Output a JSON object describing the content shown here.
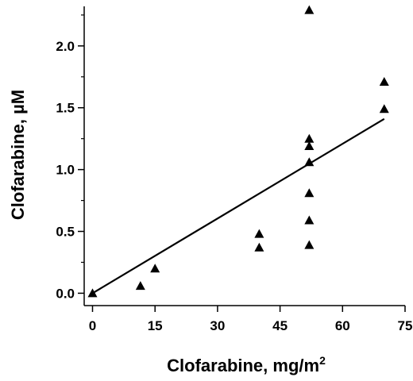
{
  "chart_data": {
    "type": "scatter",
    "xlabel": "Clofarabine, mg/m",
    "xlabel_sup": "2",
    "ylabel": "Clofarabine, µM",
    "xlim": [
      -2,
      75
    ],
    "ylim": [
      -0.1,
      2.32
    ],
    "x_ticks": [
      "0",
      "15",
      "30",
      "45",
      "60",
      "75"
    ],
    "x_tick_values": [
      0,
      15,
      30,
      45,
      60,
      75
    ],
    "y_ticks": [
      "0.0",
      "0.5",
      "1.0",
      "1.5",
      "2.0"
    ],
    "y_tick_values": [
      0.0,
      0.5,
      1.0,
      1.5,
      2.0
    ],
    "y_minor_tick_values": [
      0.25,
      0.75,
      1.25,
      1.75,
      2.25
    ],
    "marker": "triangle",
    "points": [
      {
        "x": 0,
        "y": 0.0
      },
      {
        "x": 11.5,
        "y": 0.06
      },
      {
        "x": 15,
        "y": 0.2
      },
      {
        "x": 40,
        "y": 0.48
      },
      {
        "x": 40,
        "y": 0.37
      },
      {
        "x": 52,
        "y": 2.29
      },
      {
        "x": 52,
        "y": 1.25
      },
      {
        "x": 52,
        "y": 1.19
      },
      {
        "x": 52,
        "y": 1.06
      },
      {
        "x": 52,
        "y": 0.81
      },
      {
        "x": 52,
        "y": 0.59
      },
      {
        "x": 52,
        "y": 0.39
      },
      {
        "x": 70,
        "y": 1.71
      },
      {
        "x": 70,
        "y": 1.49
      }
    ],
    "fit_line": {
      "x": [
        0,
        70
      ],
      "y": [
        0.0,
        1.41
      ]
    },
    "grid": false,
    "legend": "none"
  }
}
